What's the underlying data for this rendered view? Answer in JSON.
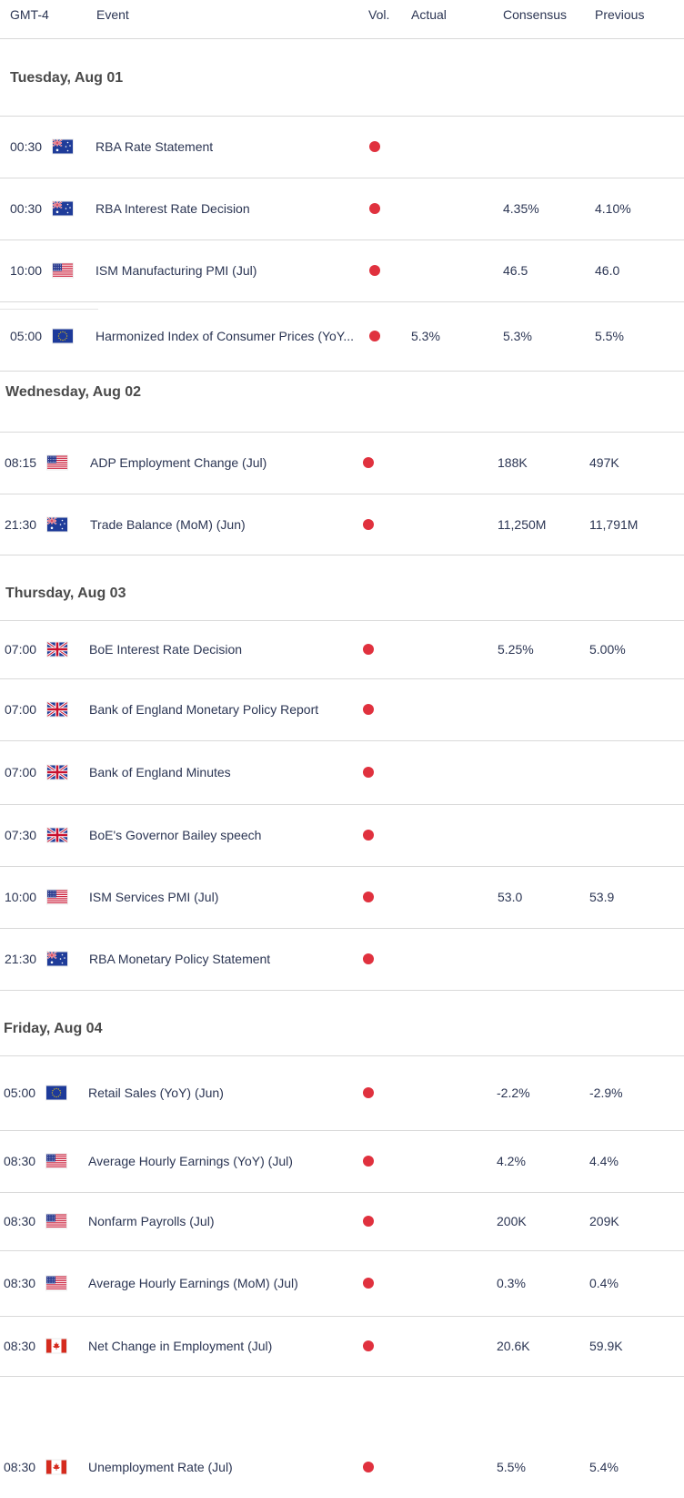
{
  "header": {
    "timezone": "GMT-4",
    "event": "Event",
    "vol": "Vol.",
    "actual": "Actual",
    "consensus": "Consensus",
    "previous": "Previous"
  },
  "colors": {
    "volatility_dot": "#e0313e",
    "text": "#2b3553",
    "divider": "#d9d9d9"
  },
  "days": [
    {
      "label": "Tuesday, Aug 01",
      "events": [
        {
          "time": "00:30",
          "flag": "au-flag-icon",
          "event": "RBA Rate Statement",
          "actual": "",
          "consensus": "",
          "previous": ""
        },
        {
          "time": "00:30",
          "flag": "au-flag-icon",
          "event": "RBA Interest Rate Decision",
          "actual": "",
          "consensus": "4.35%",
          "previous": "4.10%"
        },
        {
          "time": "10:00",
          "flag": "us-flag-icon",
          "event": "ISM Manufacturing PMI (Jul)",
          "actual": "",
          "consensus": "46.5",
          "previous": "46.0"
        },
        {
          "time": "05:00",
          "flag": "eu-flag-icon",
          "event": "Harmonized Index of Consumer Prices (YoY...",
          "actual": "5.3%",
          "consensus": "5.3%",
          "previous": "5.5%"
        }
      ]
    },
    {
      "label": "Wednesday, Aug 02",
      "events": [
        {
          "time": "08:15",
          "flag": "us-flag-icon",
          "event": "ADP Employment Change (Jul)",
          "actual": "",
          "consensus": "188K",
          "previous": "497K"
        },
        {
          "time": "21:30",
          "flag": "au-flag-icon",
          "event": "Trade Balance (MoM) (Jun)",
          "actual": "",
          "consensus": "11,250M",
          "previous": "11,791M"
        }
      ]
    },
    {
      "label": "Thursday, Aug 03",
      "events": [
        {
          "time": "07:00",
          "flag": "uk-flag-icon",
          "event": "BoE Interest Rate Decision",
          "actual": "",
          "consensus": "5.25%",
          "previous": "5.00%"
        },
        {
          "time": "07:00",
          "flag": "uk-flag-icon",
          "event": "Bank of England Monetary Policy Report",
          "actual": "",
          "consensus": "",
          "previous": ""
        },
        {
          "time": "07:00",
          "flag": "uk-flag-icon",
          "event": "Bank of England Minutes",
          "actual": "",
          "consensus": "",
          "previous": ""
        },
        {
          "time": "07:30",
          "flag": "uk-flag-icon",
          "event": "BoE's Governor Bailey speech",
          "actual": "",
          "consensus": "",
          "previous": ""
        },
        {
          "time": "10:00",
          "flag": "us-flag-icon",
          "event": "ISM Services PMI (Jul)",
          "actual": "",
          "consensus": "53.0",
          "previous": "53.9"
        },
        {
          "time": "21:30",
          "flag": "au-flag-icon",
          "event": "RBA Monetary Policy Statement",
          "actual": "",
          "consensus": "",
          "previous": ""
        }
      ]
    },
    {
      "label": "Friday, Aug 04",
      "events": [
        {
          "time": "05:00",
          "flag": "eu-flag-icon",
          "event": "Retail Sales (YoY) (Jun)",
          "actual": "",
          "consensus": "-2.2%",
          "previous": "-2.9%"
        },
        {
          "time": "08:30",
          "flag": "us-flag-icon",
          "event": "Average Hourly Earnings (YoY) (Jul)",
          "actual": "",
          "consensus": "4.2%",
          "previous": "4.4%"
        },
        {
          "time": "08:30",
          "flag": "us-flag-icon",
          "event": "Nonfarm Payrolls (Jul)",
          "actual": "",
          "consensus": "200K",
          "previous": "209K"
        },
        {
          "time": "08:30",
          "flag": "us-flag-icon",
          "event": "Average Hourly Earnings (MoM) (Jul)",
          "actual": "",
          "consensus": "0.3%",
          "previous": "0.4%"
        },
        {
          "time": "08:30",
          "flag": "ca-flag-icon",
          "event": "Net Change in Employment (Jul)",
          "actual": "",
          "consensus": "20.6K",
          "previous": "59.9K"
        },
        {
          "time": "08:30",
          "flag": "ca-flag-icon",
          "event": "Unemployment Rate (Jul)",
          "actual": "",
          "consensus": "5.5%",
          "previous": "5.4%"
        }
      ]
    }
  ]
}
